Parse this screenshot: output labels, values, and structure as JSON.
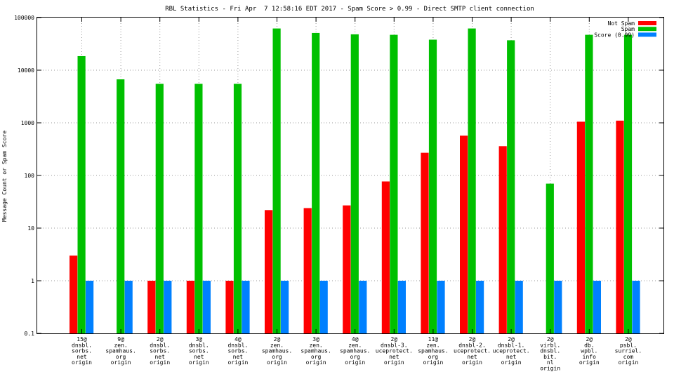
{
  "chart_data": {
    "type": "bar",
    "title": "RBL Statistics - Fri Apr  7 12:58:16 EDT 2017 - Spam Score > 0.99 - Direct SMTP client connection",
    "xlabel": "",
    "ylabel": "Message Count or Spam Score",
    "y_scale": "log",
    "ylim": [
      0.1,
      100000
    ],
    "y_ticks": [
      "0.1",
      "1",
      "10",
      "100",
      "1000",
      "10000",
      "100000"
    ],
    "grid": true,
    "legend_position": "top-right",
    "categories": [
      [
        "15@",
        "dnsbl.",
        "sorbs.",
        "net",
        "origin"
      ],
      [
        "9@",
        "zen.",
        "spamhaus.",
        "org",
        "origin"
      ],
      [
        "2@",
        "dnsbl.",
        "sorbs.",
        "net",
        "origin"
      ],
      [
        "3@",
        "dnsbl.",
        "sorbs.",
        "net",
        "origin"
      ],
      [
        "4@",
        "dnsbl.",
        "sorbs.",
        "net",
        "origin"
      ],
      [
        "2@",
        "zen.",
        "spamhaus.",
        "org",
        "origin"
      ],
      [
        "3@",
        "zen.",
        "spamhaus.",
        "org",
        "origin"
      ],
      [
        "4@",
        "zen.",
        "spamhaus.",
        "org",
        "origin"
      ],
      [
        "2@",
        "dnsbl-3.",
        "uceprotect.",
        "net",
        "origin"
      ],
      [
        "11@",
        "zen.",
        "spamhaus.",
        "org",
        "origin"
      ],
      [
        "2@",
        "dnsbl-2.",
        "uceprotect.",
        "net",
        "origin"
      ],
      [
        "2@",
        "dnsbl-1.",
        "uceprotect.",
        "net",
        "origin"
      ],
      [
        "2@",
        "virbl.",
        "dnsbl.",
        "bit.",
        "nl",
        "origin"
      ],
      [
        "2@",
        "db.",
        "wpbl.",
        "info",
        "origin"
      ],
      [
        "2@",
        "psbl.",
        "surriel.",
        "com",
        "origin"
      ]
    ],
    "series": [
      {
        "name": "Not Spam",
        "color": "#ff0000",
        "values": [
          3,
          null,
          1,
          1,
          1,
          22,
          24,
          27,
          77,
          270,
          570,
          360,
          null,
          1050,
          1100
        ]
      },
      {
        "name": "Spam",
        "color": "#00c000",
        "values": [
          18500,
          6700,
          5500,
          5500,
          5500,
          62000,
          51000,
          48000,
          47000,
          38000,
          62000,
          37000,
          70,
          47000,
          47000
        ]
      },
      {
        "name": "Score (0.99)",
        "color": "#0080ff",
        "values": [
          1,
          1,
          1,
          1,
          1,
          1,
          1,
          1,
          1,
          1,
          1,
          1,
          1,
          1,
          1
        ]
      }
    ]
  }
}
